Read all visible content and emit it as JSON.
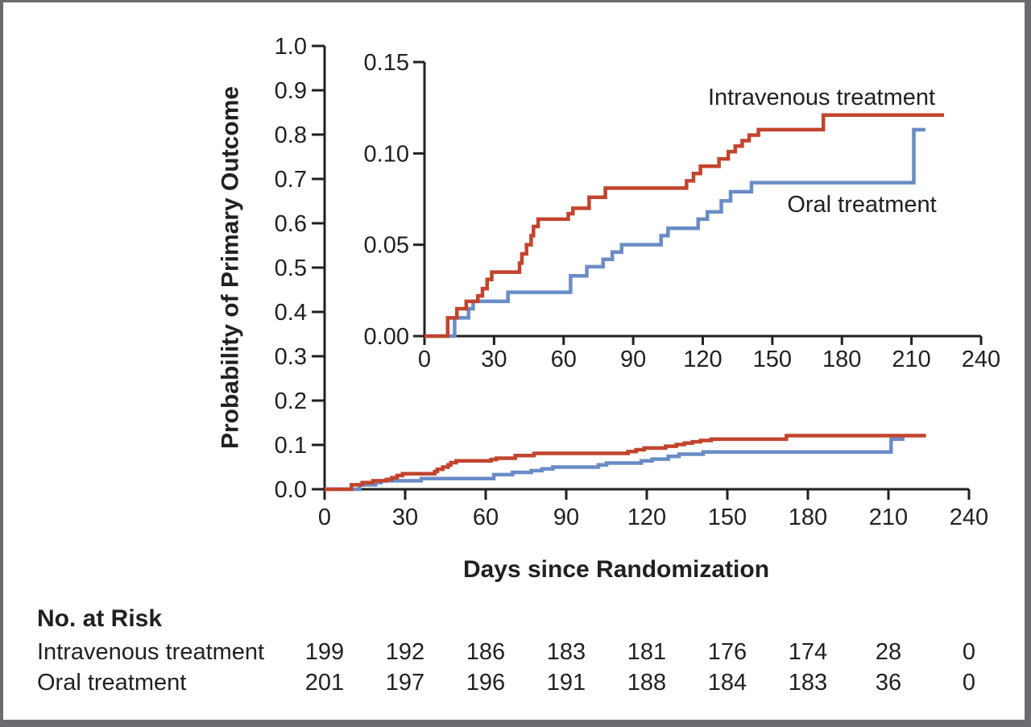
{
  "figure": {
    "kind": "kaplan-meier-cumulative-incidence-figure",
    "background_color": "#ffffff",
    "border_color": "#6a6c71",
    "text_color": "#231f20"
  },
  "chart_data": {
    "type": "line",
    "step": true,
    "title": "",
    "xlabel": "Days since Randomization",
    "ylabel": "Probability of Primary Outcome",
    "legend_position": "inline-annotations-in-inset",
    "main_axis": {
      "xlim": [
        0,
        240
      ],
      "ylim": [
        0,
        1
      ],
      "xticks": [
        0,
        30,
        60,
        90,
        120,
        150,
        180,
        210,
        240
      ],
      "xtick_labels": [
        "0",
        "30",
        "60",
        "90",
        "120",
        "150",
        "180",
        "210",
        "240"
      ],
      "yticks": [
        0,
        0.1,
        0.2,
        0.3,
        0.4,
        0.5,
        0.6,
        0.7,
        0.8,
        0.9,
        1.0
      ],
      "ytick_labels": [
        "0.0",
        "0.1",
        "0.2",
        "0.3",
        "0.4",
        "0.5",
        "0.6",
        "0.7",
        "0.8",
        "0.9",
        "1.0"
      ],
      "grid": false
    },
    "inset_axis": {
      "xlim": [
        0,
        240
      ],
      "ylim": [
        0,
        0.15
      ],
      "xticks": [
        0,
        30,
        60,
        90,
        120,
        150,
        180,
        210,
        240
      ],
      "xtick_labels": [
        "0",
        "30",
        "60",
        "90",
        "120",
        "150",
        "180",
        "210",
        "240"
      ],
      "yticks": [
        0,
        0.05,
        0.1,
        0.15
      ],
      "ytick_labels": [
        "0.00",
        "0.05",
        "0.10",
        "0.15"
      ],
      "grid": false
    },
    "series": [
      {
        "name": "Intravenous treatment",
        "color": "#c2442d",
        "points": [
          [
            0,
            0.0
          ],
          [
            10,
            0.01
          ],
          [
            14,
            0.015
          ],
          [
            18,
            0.019
          ],
          [
            23,
            0.022
          ],
          [
            25,
            0.026
          ],
          [
            27,
            0.031
          ],
          [
            29,
            0.035
          ],
          [
            41,
            0.04
          ],
          [
            42,
            0.045
          ],
          [
            44,
            0.05
          ],
          [
            46,
            0.055
          ],
          [
            47,
            0.06
          ],
          [
            49,
            0.064
          ],
          [
            62,
            0.067
          ],
          [
            64,
            0.07
          ],
          [
            71,
            0.076
          ],
          [
            78,
            0.081
          ],
          [
            113,
            0.085
          ],
          [
            116,
            0.089
          ],
          [
            119,
            0.093
          ],
          [
            127,
            0.097
          ],
          [
            131,
            0.101
          ],
          [
            134,
            0.104
          ],
          [
            137,
            0.107
          ],
          [
            140,
            0.11
          ],
          [
            144,
            0.113
          ],
          [
            172,
            0.121
          ],
          [
            224,
            0.121
          ]
        ]
      },
      {
        "name": "Oral treatment",
        "color": "#6a8cc6",
        "points": [
          [
            0,
            0.0
          ],
          [
            13,
            0.01
          ],
          [
            19,
            0.015
          ],
          [
            21,
            0.019
          ],
          [
            36,
            0.024
          ],
          [
            63,
            0.033
          ],
          [
            70,
            0.038
          ],
          [
            77,
            0.042
          ],
          [
            81,
            0.046
          ],
          [
            85,
            0.05
          ],
          [
            102,
            0.055
          ],
          [
            105,
            0.059
          ],
          [
            118,
            0.064
          ],
          [
            122,
            0.068
          ],
          [
            128,
            0.074
          ],
          [
            132,
            0.079
          ],
          [
            141,
            0.084
          ],
          [
            211,
            0.113
          ],
          [
            216,
            0.113
          ]
        ]
      }
    ]
  },
  "risk_table": {
    "title": "No. at Risk",
    "time_points": [
      0,
      30,
      60,
      90,
      120,
      150,
      180,
      210,
      240
    ],
    "rows": [
      {
        "label": "Intravenous treatment",
        "values": [
          199,
          192,
          186,
          183,
          181,
          176,
          174,
          28,
          0
        ]
      },
      {
        "label": "Oral treatment",
        "values": [
          201,
          197,
          196,
          191,
          188,
          184,
          183,
          36,
          0
        ]
      }
    ]
  }
}
